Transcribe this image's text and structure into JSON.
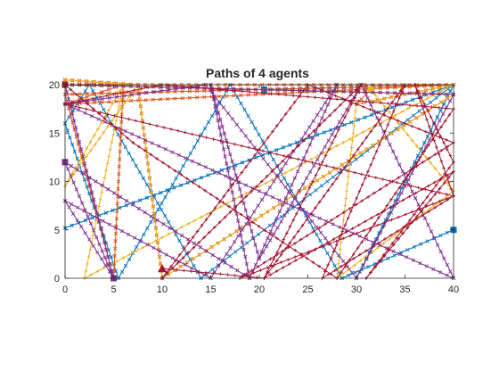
{
  "chart_data": {
    "type": "line",
    "title": "Paths of 4 agents",
    "xlabel": "",
    "ylabel": "",
    "xlim": [
      0,
      40
    ],
    "ylim": [
      0,
      20
    ],
    "xticks": [
      0,
      5,
      10,
      15,
      20,
      25,
      30,
      35,
      40
    ],
    "yticks": [
      0,
      5,
      10,
      15,
      20
    ],
    "xtick_labels": [
      "0",
      "5",
      "10",
      "15",
      "20",
      "25",
      "30",
      "35",
      "40"
    ],
    "ytick_labels": [
      "0",
      "5",
      "10",
      "15",
      "20"
    ],
    "grid": false,
    "legend": "none",
    "series": [
      {
        "color": "#0072BD",
        "marker": "x",
        "end_marker": "square",
        "points": [
          [
            40,
            5
          ],
          [
            28.5,
            0
          ],
          [
            17,
            20
          ],
          [
            5.5,
            0
          ],
          [
            0,
            16
          ],
          [
            2.5,
            20
          ],
          [
            14,
            0
          ],
          [
            40,
            20
          ],
          [
            30,
            0
          ],
          [
            40,
            20
          ],
          [
            0,
            5.2
          ],
          [
            40,
            20
          ],
          [
            20.5,
            19.5
          ]
        ]
      },
      {
        "color": "#D95319",
        "marker": "x",
        "end_marker": "square",
        "points": [
          [
            0,
            20
          ],
          [
            6.5,
            20
          ],
          [
            0,
            20.5
          ],
          [
            7.5,
            20
          ],
          [
            10,
            0
          ],
          [
            40,
            19
          ],
          [
            0,
            20
          ],
          [
            16.5,
            20
          ],
          [
            40,
            20
          ],
          [
            0,
            19
          ],
          [
            5,
            0
          ],
          [
            6,
            20
          ],
          [
            0,
            18
          ],
          [
            40,
            20
          ],
          [
            30,
            18
          ],
          [
            31.5,
            19.5
          ]
        ]
      },
      {
        "color": "#EDB120",
        "marker": "+",
        "end_marker": "square",
        "points": [
          [
            0,
            20
          ],
          [
            6.5,
            20
          ],
          [
            0,
            20.5
          ],
          [
            7.5,
            20
          ],
          [
            10,
            0
          ],
          [
            40,
            19
          ],
          [
            0,
            20
          ],
          [
            16.5,
            20
          ],
          [
            0,
            20
          ],
          [
            7.5,
            20
          ],
          [
            0,
            9.5
          ],
          [
            6,
            20
          ],
          [
            2,
            0
          ],
          [
            40,
            20
          ],
          [
            30,
            18
          ],
          [
            28,
            0
          ],
          [
            40,
            9
          ],
          [
            31.5,
            19.5
          ]
        ]
      },
      {
        "color": "#7E2F8E",
        "marker": "x",
        "end_marker": "square",
        "points": [
          [
            0,
            12
          ],
          [
            19,
            0
          ],
          [
            15,
            20
          ],
          [
            20,
            2
          ],
          [
            30.5,
            20
          ],
          [
            40,
            0
          ],
          [
            0,
            18
          ],
          [
            14.5,
            20
          ],
          [
            30,
            0
          ],
          [
            40,
            19
          ],
          [
            0,
            20
          ],
          [
            5,
            0
          ],
          [
            0,
            12
          ],
          [
            19,
            0
          ],
          [
            28,
            20
          ],
          [
            15,
            0
          ],
          [
            0,
            8
          ],
          [
            5,
            0
          ]
        ]
      },
      {
        "color": "#A2142F",
        "marker": "+",
        "end_marker": "triangle",
        "points": [
          [
            0,
            20
          ],
          [
            7,
            14
          ],
          [
            28,
            0
          ],
          [
            40,
            17.5
          ],
          [
            10,
            20
          ],
          [
            0,
            18
          ],
          [
            40,
            8.5
          ],
          [
            18,
            0
          ],
          [
            40,
            14
          ],
          [
            25,
            20
          ],
          [
            10,
            0
          ],
          [
            30.5,
            20
          ],
          [
            20.5,
            0
          ],
          [
            35,
            20
          ],
          [
            26.5,
            0
          ],
          [
            40,
            8.5
          ],
          [
            36,
            20
          ],
          [
            40,
            12
          ],
          [
            31,
            0
          ],
          [
            40,
            11
          ],
          [
            20.5,
            0
          ],
          [
            10,
            1
          ]
        ]
      }
    ]
  }
}
